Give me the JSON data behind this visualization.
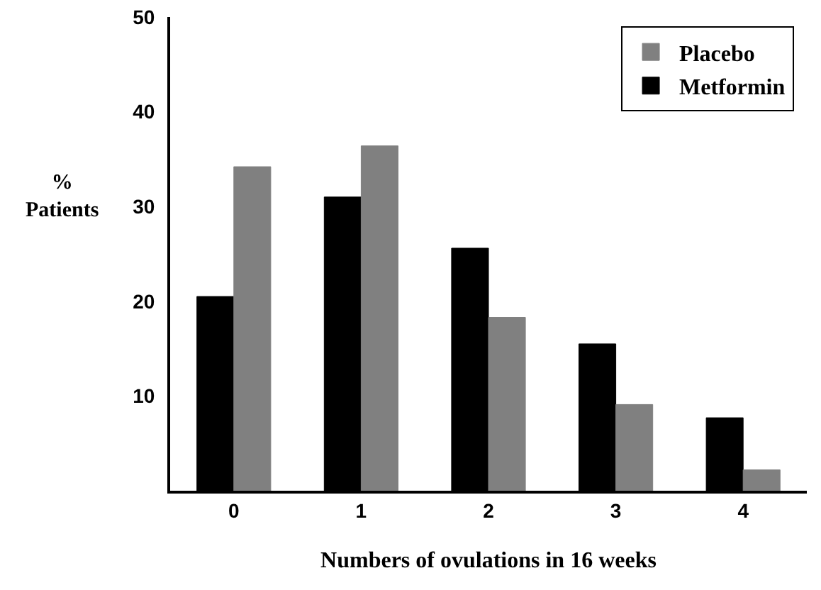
{
  "chart_data": {
    "type": "bar",
    "xlabel": "Numbers of ovulations in 16 weeks",
    "ylabel": "% Patients",
    "categories": [
      "0",
      "1",
      "2",
      "3",
      "4"
    ],
    "series": [
      {
        "name": "Metformin",
        "color": "#000000",
        "values": [
          20.5,
          31,
          25.6,
          15.5,
          7.7
        ]
      },
      {
        "name": "Placebo",
        "color": "#808080",
        "values": [
          34.2,
          36.4,
          18.3,
          9.1,
          2.2
        ]
      }
    ],
    "ylim": [
      0,
      50
    ],
    "yticks": [
      10,
      20,
      30,
      40,
      50
    ],
    "grid": false,
    "legend": "top right"
  }
}
